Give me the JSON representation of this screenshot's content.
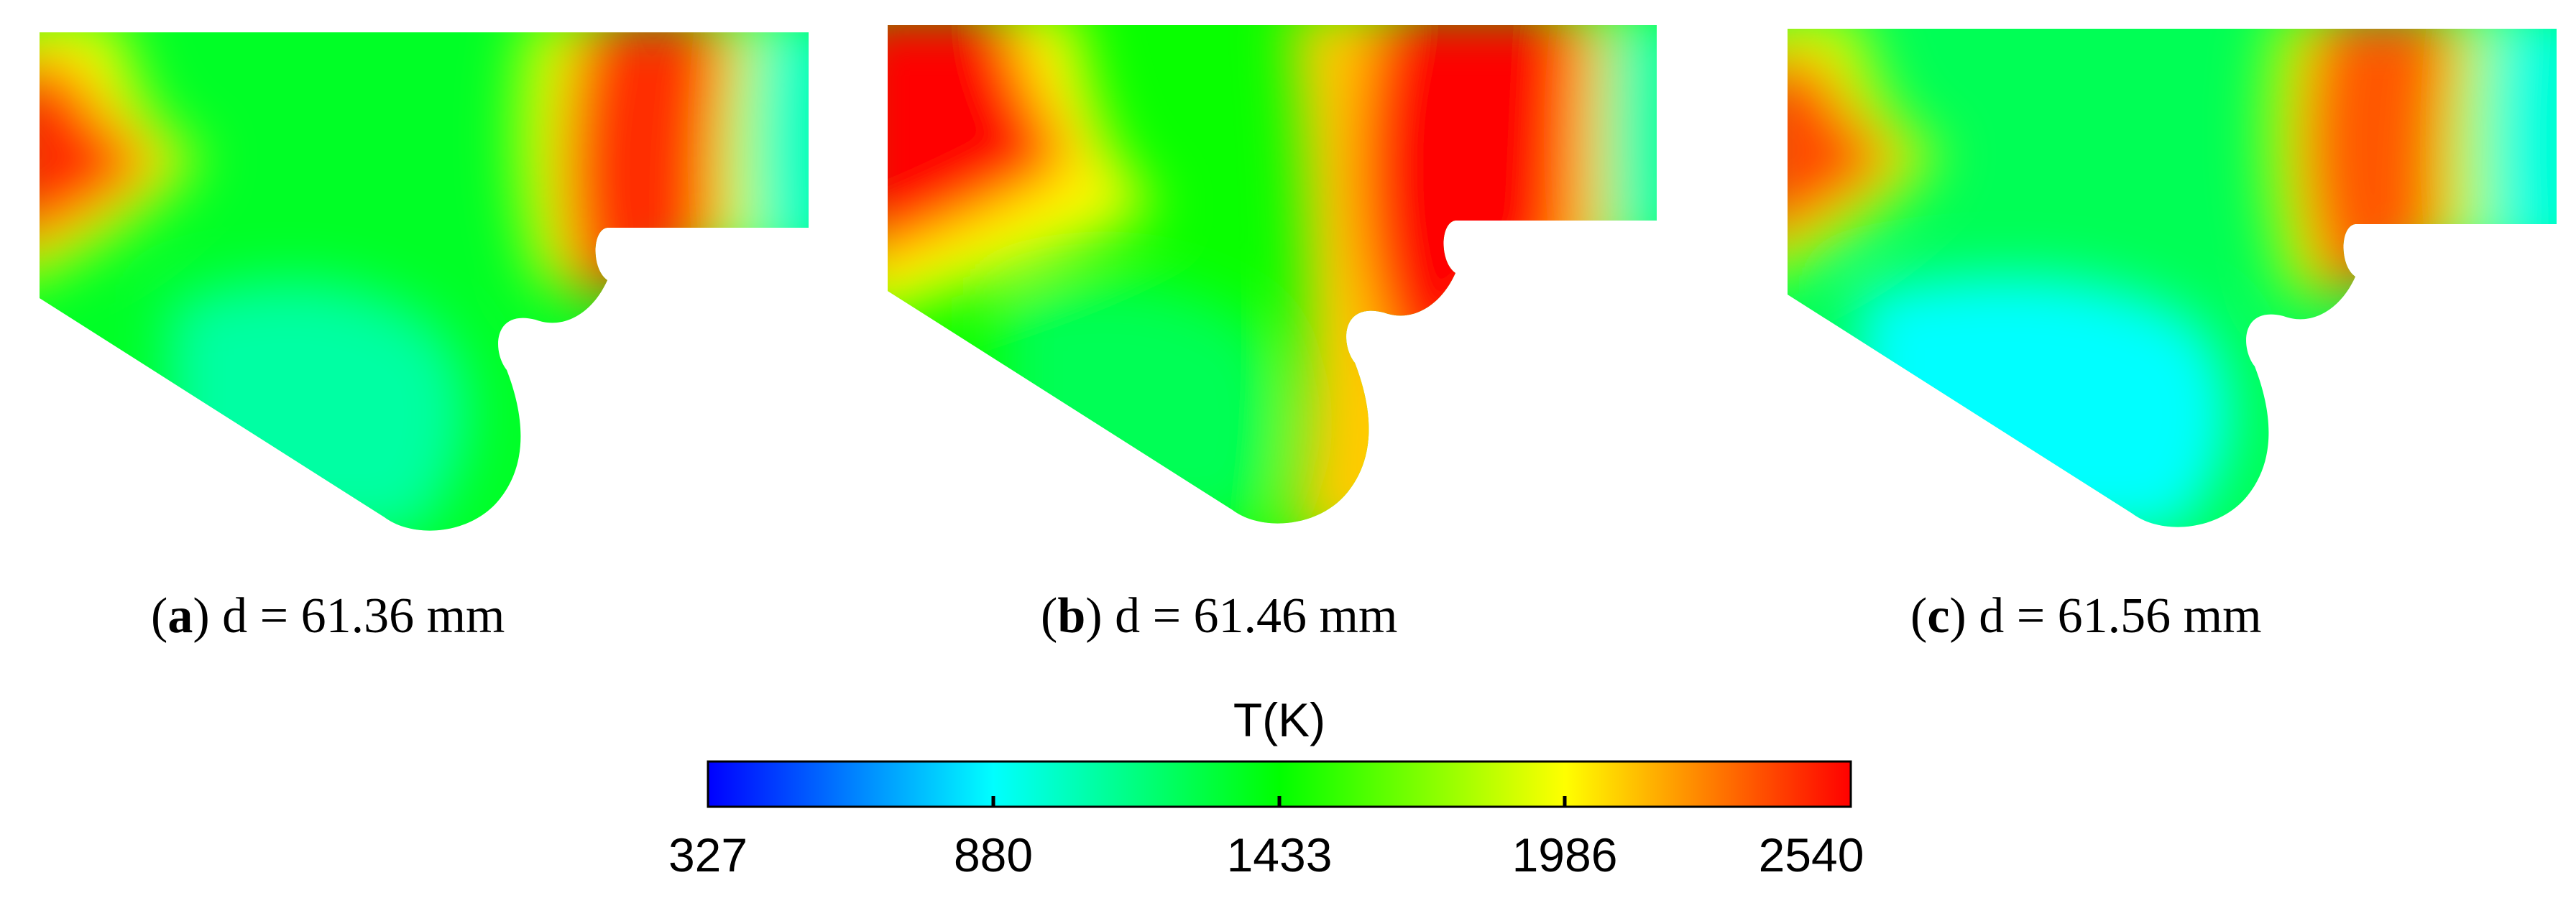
{
  "panels": [
    {
      "id": "a",
      "letter": "a",
      "caption": "d = 61.36 mm",
      "regions": [
        {
          "name": "left-hot-zone",
          "temp": 2450
        },
        {
          "name": "left-warm-band",
          "temp": 1960
        },
        {
          "name": "center-green-field",
          "temp": 1350
        },
        {
          "name": "lower-cool-zone",
          "temp": 1080
        },
        {
          "name": "right-hot-band",
          "temp": 2440
        },
        {
          "name": "right-mid-band",
          "temp": 1900
        },
        {
          "name": "right-cool-tip",
          "temp": 1000
        }
      ]
    },
    {
      "id": "b",
      "letter": "b",
      "caption": "d = 61.46 mm",
      "regions": [
        {
          "name": "left-hot-zone",
          "temp": 2540
        },
        {
          "name": "left-warm-band",
          "temp": 2000
        },
        {
          "name": "center-green-field",
          "temp": 1450
        },
        {
          "name": "lower-cool-zone",
          "temp": 1250
        },
        {
          "name": "right-hot-band",
          "temp": 2540
        },
        {
          "name": "right-mid-band",
          "temp": 2100
        },
        {
          "name": "right-cool-tip",
          "temp": 1050
        }
      ]
    },
    {
      "id": "c",
      "letter": "c",
      "caption": "d = 61.56 mm",
      "regions": [
        {
          "name": "left-hot-zone",
          "temp": 2380
        },
        {
          "name": "left-warm-band",
          "temp": 1900
        },
        {
          "name": "center-green-field",
          "temp": 1250
        },
        {
          "name": "lower-cool-zone",
          "temp": 880
        },
        {
          "name": "right-hot-band",
          "temp": 2350
        },
        {
          "name": "right-mid-band",
          "temp": 1850
        },
        {
          "name": "right-cool-tip",
          "temp": 950
        }
      ]
    }
  ],
  "colorbar": {
    "title": "T(K)",
    "min": 327,
    "max": 2540,
    "ticks": [
      "327",
      "880",
      "1433",
      "1986",
      "2540"
    ],
    "colors": [
      "#0000ff",
      "#00ffff",
      "#00ff00",
      "#ffff00",
      "#ff0000"
    ]
  }
}
